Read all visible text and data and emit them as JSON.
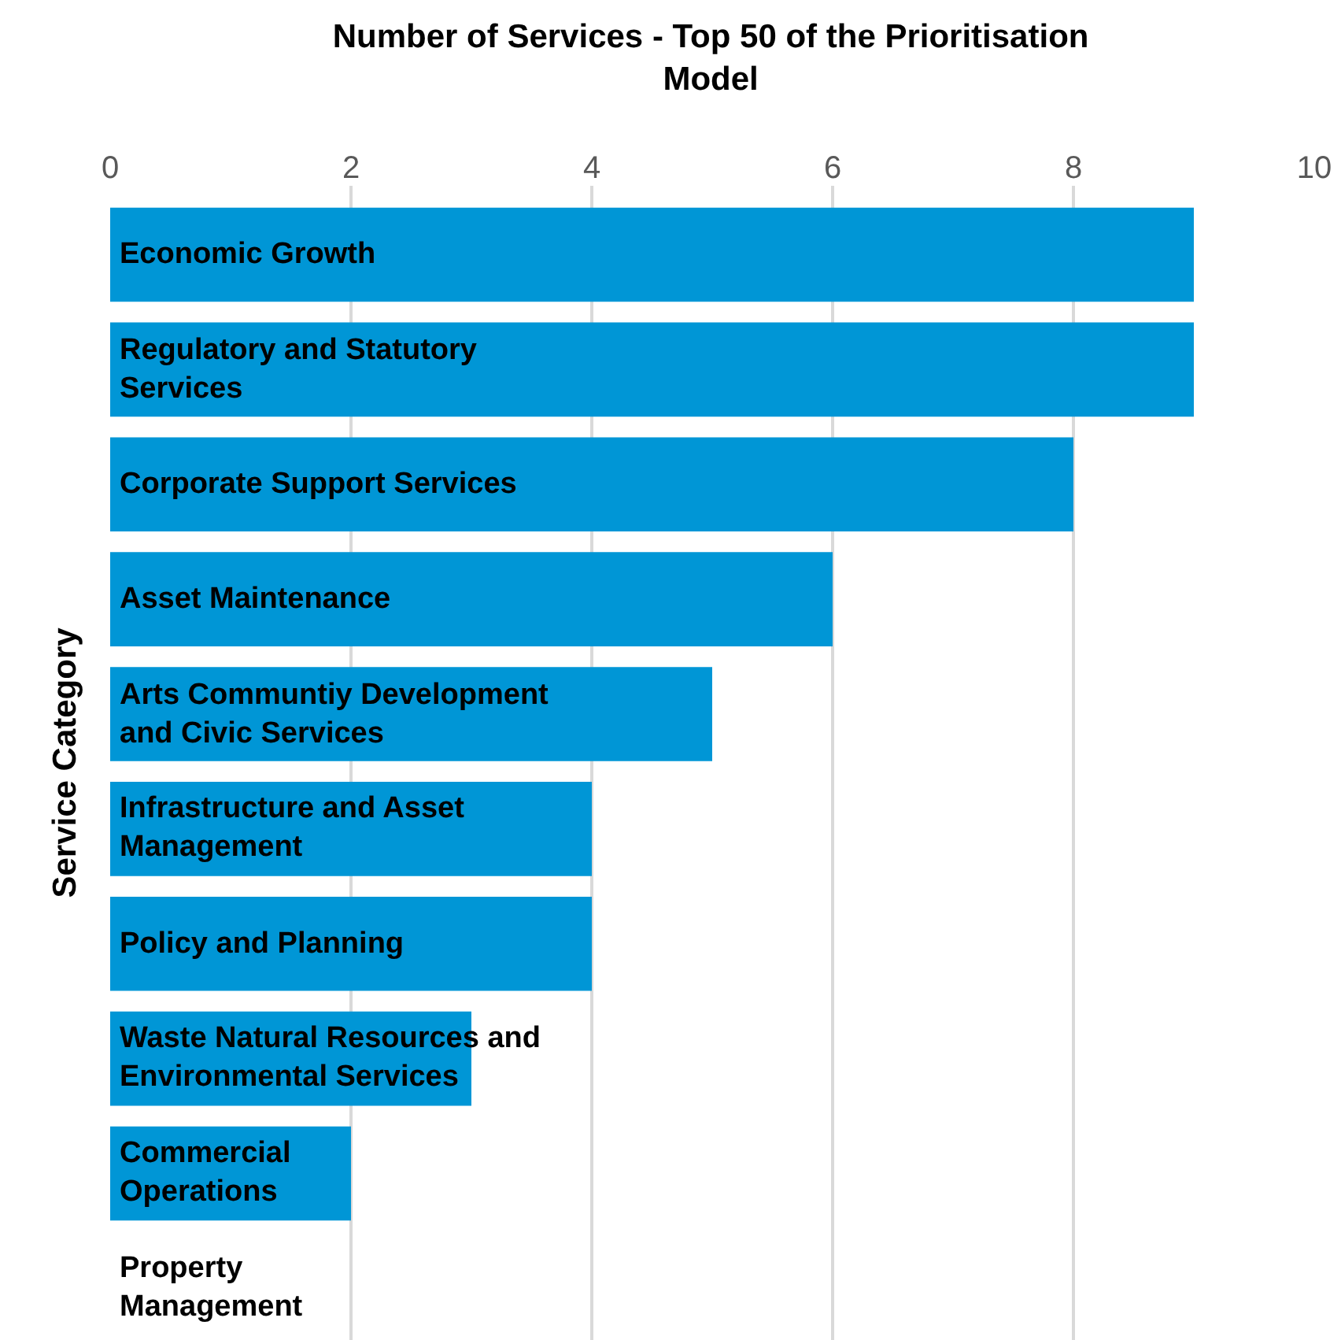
{
  "chart_data": {
    "type": "bar",
    "orientation": "horizontal",
    "title": "Number of Services - Top 50 of the Prioritisation Model",
    "ylabel": "Service Category",
    "categories": [
      "Economic Growth",
      "Regulatory and Statutory Services",
      "Corporate Support Services",
      "Asset Maintenance",
      "Arts Communtiy Development and Civic Services",
      "Infrastructure and Asset Management",
      "Policy and Planning",
      "Waste Natural Resources and Environmental Services",
      "Commercial Operations",
      "Property Management"
    ],
    "values": [
      9,
      9,
      8,
      6,
      5,
      4,
      4,
      3,
      2,
      0
    ],
    "color": "#0096d6",
    "xlim": [
      0,
      10
    ],
    "xticks": [
      0,
      2,
      4,
      6,
      8,
      10
    ],
    "grid": "x",
    "legend": false
  }
}
